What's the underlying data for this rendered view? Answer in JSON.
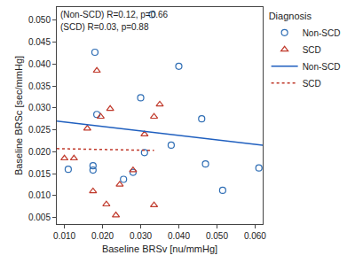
{
  "chart_data": {
    "type": "scatter",
    "x_label": "Baseline BRSv [nu/mmHg]",
    "y_label": "Baseline BRSc [sec/mmHg]",
    "annotations": [
      "(Non-SCD) R=0.12, p=0.66",
      "(SCD) R=0.03, p=0.88"
    ],
    "legend_title": "Diagnosis",
    "legend": "upper right",
    "grid": false,
    "xlim": [
      0.008,
      0.062
    ],
    "ylim": [
      0.0035,
      0.053
    ],
    "xticks": [
      {
        "value": 0.01,
        "label": "0.010"
      },
      {
        "value": 0.02,
        "label": "0.020"
      },
      {
        "value": 0.03,
        "label": "0.030"
      },
      {
        "value": 0.04,
        "label": "0.040"
      },
      {
        "value": 0.05,
        "label": "0.050"
      },
      {
        "value": 0.06,
        "label": "0.060"
      }
    ],
    "yticks": [
      {
        "value": 0.005,
        "label": "0.005"
      },
      {
        "value": 0.01,
        "label": "0.010"
      },
      {
        "value": 0.015,
        "label": "0.015"
      },
      {
        "value": 0.02,
        "label": "0.020"
      },
      {
        "value": 0.025,
        "label": "0.025"
      },
      {
        "value": 0.03,
        "label": "0.030"
      },
      {
        "value": 0.035,
        "label": "0.035"
      },
      {
        "value": 0.04,
        "label": "0.040"
      },
      {
        "value": 0.045,
        "label": "0.045"
      },
      {
        "value": 0.05,
        "label": "0.050"
      }
    ],
    "series": [
      {
        "name": "Non-SCD",
        "type": "scatter",
        "marker": "circle-open",
        "color": "#2e6db4",
        "x": [
          0.033,
          0.018,
          0.04,
          0.03,
          0.0185,
          0.046,
          0.038,
          0.031,
          0.0175,
          0.011,
          0.0175,
          0.047,
          0.061,
          0.0255,
          0.028,
          0.0515
        ],
        "values": [
          0.0513,
          0.0427,
          0.0395,
          0.0323,
          0.0285,
          0.0275,
          0.0215,
          0.0198,
          0.0168,
          0.016,
          0.0158,
          0.0172,
          0.0163,
          0.0137,
          0.0153,
          0.0112
        ]
      },
      {
        "name": "SCD",
        "type": "scatter",
        "marker": "triangle-up-open",
        "color": "#c0392b",
        "x": [
          0.0185,
          0.0195,
          0.035,
          0.022,
          0.016,
          0.01,
          0.0125,
          0.0335,
          0.031,
          0.0175,
          0.028,
          0.021,
          0.0235,
          0.0335,
          0.0245
        ],
        "values": [
          0.0385,
          0.028,
          0.0308,
          0.0298,
          0.0253,
          0.0185,
          0.0185,
          0.028,
          0.024,
          0.011,
          0.0158,
          0.008,
          0.0055,
          0.0078,
          0.0125
        ]
      },
      {
        "name": "Non-SCD",
        "type": "line",
        "line_style": "solid",
        "color": "#1f5fbf",
        "x": [
          0.008,
          0.062
        ],
        "values": [
          0.027,
          0.0215
        ]
      },
      {
        "name": "SCD",
        "type": "line",
        "line_style": "dot",
        "color": "#c0392b",
        "x": [
          0.008,
          0.0335
        ],
        "values": [
          0.0207,
          0.0203
        ]
      }
    ]
  }
}
